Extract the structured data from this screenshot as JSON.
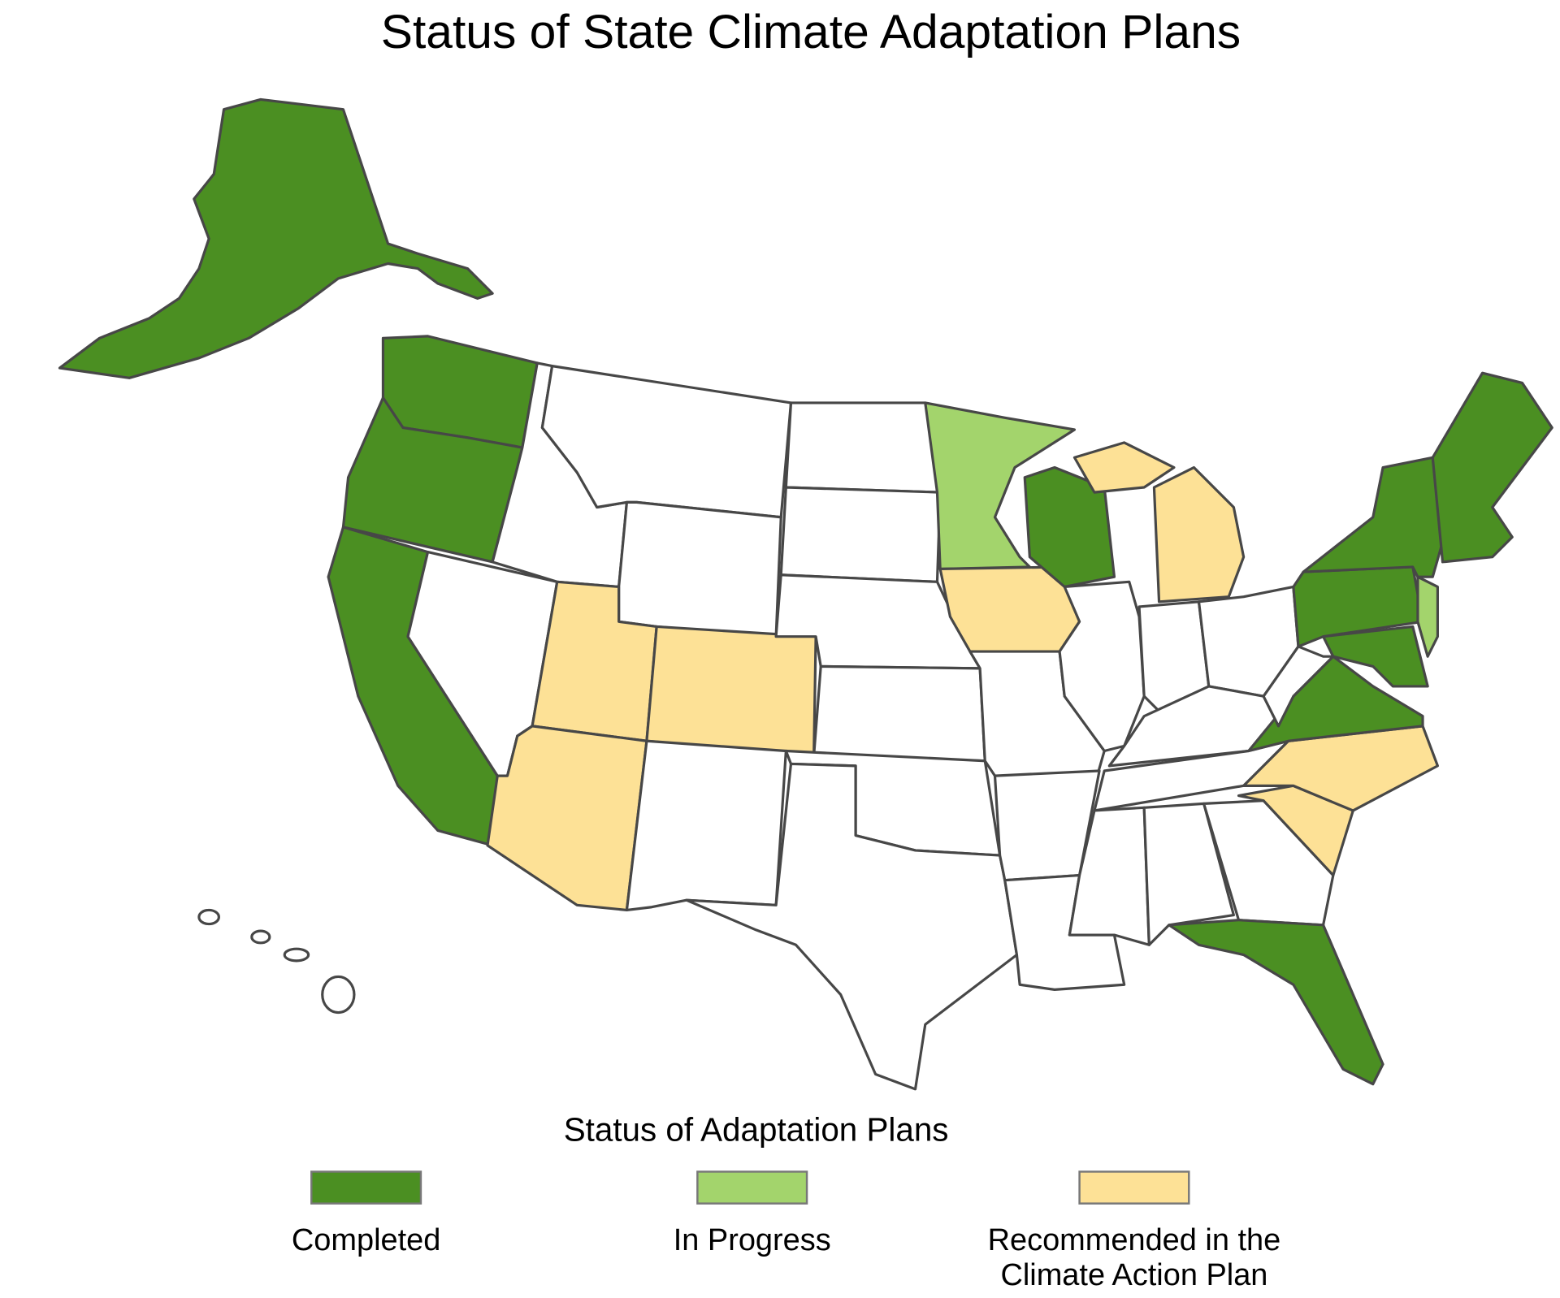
{
  "title": "Status of State Climate Adaptation Plans",
  "legend": {
    "title": "Status of Adaptation Plans",
    "items": [
      {
        "label": [
          "Completed"
        ],
        "color": "#4b8f22"
      },
      {
        "label": [
          "In Progress"
        ],
        "color": "#a3d46c"
      },
      {
        "label": [
          "Recommended in the",
          "Climate Action Plan"
        ],
        "color": "#fde196"
      }
    ]
  }
}
